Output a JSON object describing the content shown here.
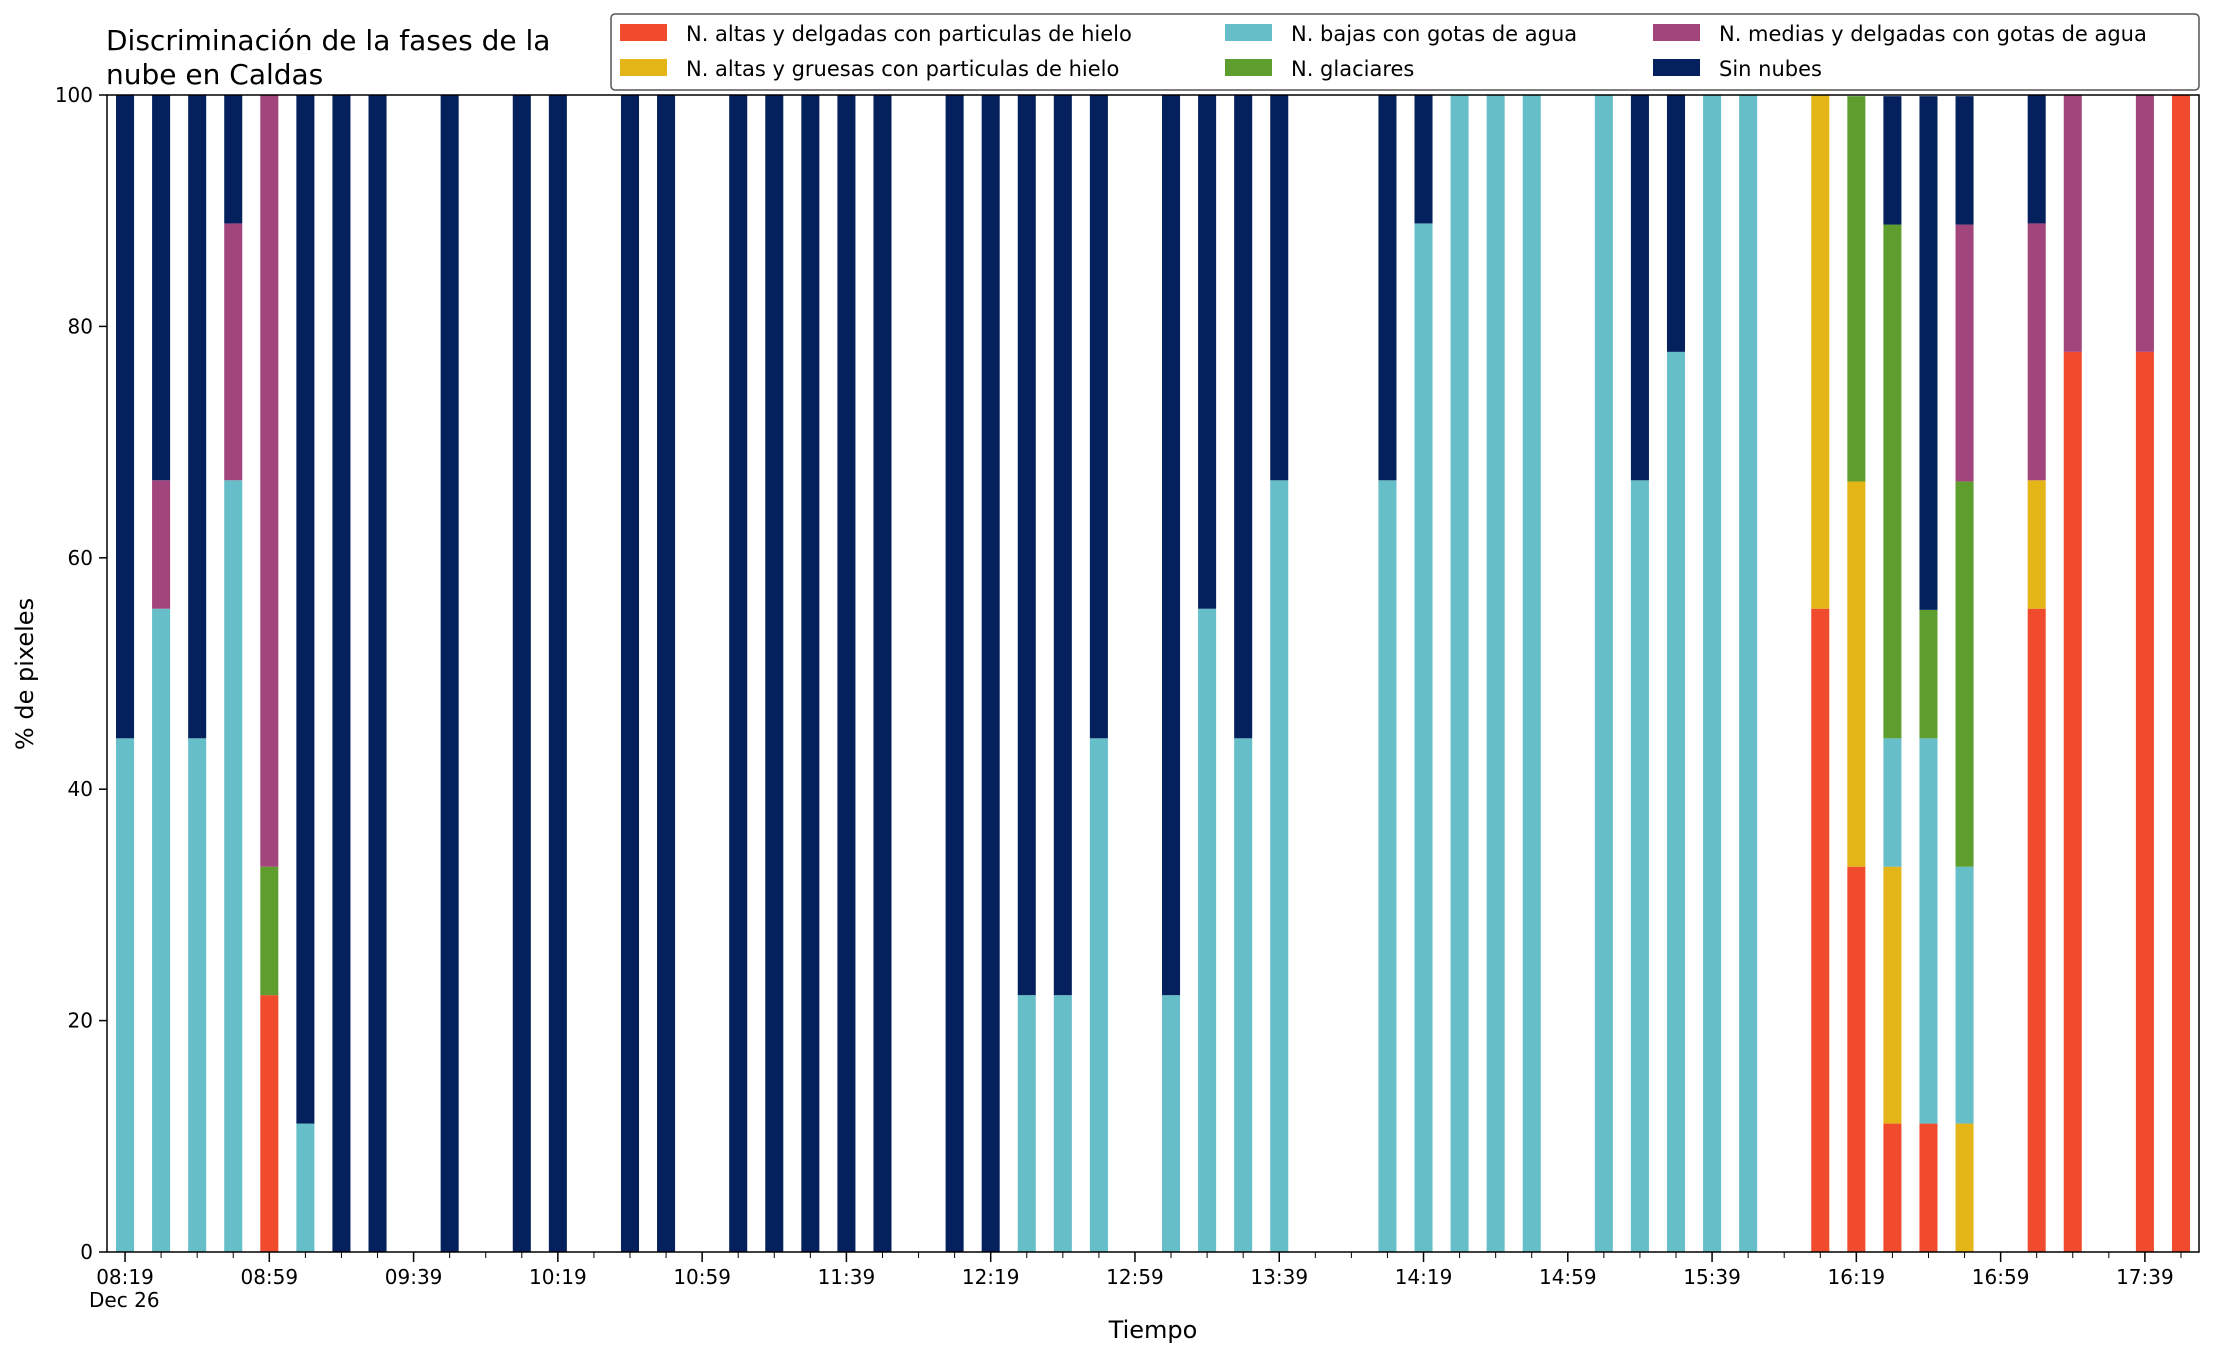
{
  "chart_data": {
    "type": "bar",
    "stacked": true,
    "title": "Discriminación de la fases de la nube en Caldas",
    "xlabel": "Tiempo",
    "ylabel": "% de pixeles",
    "ylim": [
      0,
      100
    ],
    "yticks": [
      0,
      20,
      40,
      60,
      80,
      100
    ],
    "xlim_slots": [
      -0.5,
      57.5
    ],
    "legend_position": "top-right",
    "grid": false,
    "x_date_label": "Dec 26",
    "xticks": [
      {
        "slot": 0,
        "label": "08:19"
      },
      {
        "slot": 4,
        "label": "08:59"
      },
      {
        "slot": 8,
        "label": "09:39"
      },
      {
        "slot": 12,
        "label": "10:19"
      },
      {
        "slot": 16,
        "label": "10:59"
      },
      {
        "slot": 20,
        "label": "11:39"
      },
      {
        "slot": 24,
        "label": "12:19"
      },
      {
        "slot": 28,
        "label": "12:59"
      },
      {
        "slot": 32,
        "label": "13:39"
      },
      {
        "slot": 36,
        "label": "14:19"
      },
      {
        "slot": 40,
        "label": "14:59"
      },
      {
        "slot": 44,
        "label": "15:39"
      },
      {
        "slot": 48,
        "label": "16:19"
      },
      {
        "slot": 52,
        "label": "16:59"
      },
      {
        "slot": 56,
        "label": "17:39"
      }
    ],
    "series": [
      {
        "name": "N. altas y delgadas con particulas de hielo",
        "color": "#f04b2c"
      },
      {
        "name": "N. altas y gruesas con particulas de hielo",
        "color": "#e3b516"
      },
      {
        "name": "N. bajas con gotas de agua",
        "color": "#66bec8"
      },
      {
        "name": "N. glaciares",
        "color": "#5d9e2e"
      },
      {
        "name": "N. medias y delgadas con gotas de agua",
        "color": "#a2457c"
      },
      {
        "name": "Sin nubes",
        "color": "#04215e"
      }
    ],
    "bars": [
      {
        "slot": 0,
        "time": "08:19",
        "values": [
          0,
          0,
          44.4,
          0,
          0,
          55.6
        ]
      },
      {
        "slot": 1,
        "time": "08:29",
        "values": [
          0,
          0,
          55.6,
          0,
          11.1,
          33.3
        ]
      },
      {
        "slot": 2,
        "time": "08:39",
        "values": [
          0,
          0,
          44.4,
          0,
          0,
          55.6
        ]
      },
      {
        "slot": 3,
        "time": "08:49",
        "values": [
          0,
          0,
          66.7,
          0,
          22.2,
          11.1
        ]
      },
      {
        "slot": 4,
        "time": "08:59",
        "values": [
          22.2,
          0,
          0,
          11.1,
          66.7,
          0
        ]
      },
      {
        "slot": 5,
        "time": "09:09",
        "values": [
          0,
          0,
          11.1,
          0,
          0,
          88.9
        ]
      },
      {
        "slot": 6,
        "time": "09:19",
        "values": [
          0,
          0,
          0,
          0,
          0,
          100
        ]
      },
      {
        "slot": 7,
        "time": "09:29",
        "values": [
          0,
          0,
          0,
          0,
          0,
          100
        ]
      },
      {
        "slot": 9,
        "time": "09:49",
        "values": [
          0,
          0,
          0,
          0,
          0,
          100
        ]
      },
      {
        "slot": 11,
        "time": "10:09",
        "values": [
          0,
          0,
          0,
          0,
          0,
          100
        ]
      },
      {
        "slot": 12,
        "time": "10:19",
        "values": [
          0,
          0,
          0,
          0,
          0,
          100
        ]
      },
      {
        "slot": 14,
        "time": "10:39",
        "values": [
          0,
          0,
          0,
          0,
          0,
          100
        ]
      },
      {
        "slot": 15,
        "time": "10:49",
        "values": [
          0,
          0,
          0,
          0,
          0,
          100
        ]
      },
      {
        "slot": 17,
        "time": "11:09",
        "values": [
          0,
          0,
          0,
          0,
          0,
          100
        ]
      },
      {
        "slot": 18,
        "time": "11:19",
        "values": [
          0,
          0,
          0,
          0,
          0,
          100
        ]
      },
      {
        "slot": 19,
        "time": "11:29",
        "values": [
          0,
          0,
          0,
          0,
          0,
          100
        ]
      },
      {
        "slot": 20,
        "time": "11:39",
        "values": [
          0,
          0,
          0,
          0,
          0,
          100
        ]
      },
      {
        "slot": 21,
        "time": "11:49",
        "values": [
          0,
          0,
          0,
          0,
          0,
          100
        ]
      },
      {
        "slot": 23,
        "time": "12:09",
        "values": [
          0,
          0,
          0,
          0,
          0,
          100
        ]
      },
      {
        "slot": 24,
        "time": "12:19",
        "values": [
          0,
          0,
          0,
          0,
          0,
          100
        ]
      },
      {
        "slot": 25,
        "time": "12:29",
        "values": [
          0,
          0,
          22.2,
          0,
          0,
          77.8
        ]
      },
      {
        "slot": 26,
        "time": "12:39",
        "values": [
          0,
          0,
          22.2,
          0,
          0,
          77.8
        ]
      },
      {
        "slot": 27,
        "time": "12:49",
        "values": [
          0,
          0,
          44.4,
          0,
          0,
          55.6
        ]
      },
      {
        "slot": 29,
        "time": "13:09",
        "values": [
          0,
          0,
          22.2,
          0,
          0,
          77.8
        ]
      },
      {
        "slot": 30,
        "time": "13:19",
        "values": [
          0,
          0,
          55.6,
          0,
          0,
          44.4
        ]
      },
      {
        "slot": 31,
        "time": "13:29",
        "values": [
          0,
          0,
          44.4,
          0,
          0,
          55.6
        ]
      },
      {
        "slot": 32,
        "time": "13:39",
        "values": [
          0,
          0,
          66.7,
          0,
          0,
          33.3
        ]
      },
      {
        "slot": 35,
        "time": "14:09",
        "values": [
          0,
          0,
          66.7,
          0,
          0,
          33.3
        ]
      },
      {
        "slot": 36,
        "time": "14:19",
        "values": [
          0,
          0,
          88.9,
          0,
          0,
          11.1
        ]
      },
      {
        "slot": 37,
        "time": "14:29",
        "values": [
          0,
          0,
          100,
          0,
          0,
          0
        ]
      },
      {
        "slot": 38,
        "time": "14:39",
        "values": [
          0,
          0,
          100,
          0,
          0,
          0
        ]
      },
      {
        "slot": 39,
        "time": "14:49",
        "values": [
          0,
          0,
          100,
          0,
          0,
          0
        ]
      },
      {
        "slot": 41,
        "time": "15:09",
        "values": [
          0,
          0,
          100,
          0,
          0,
          0
        ]
      },
      {
        "slot": 42,
        "time": "15:19",
        "values": [
          0,
          0,
          66.7,
          0,
          0,
          33.3
        ]
      },
      {
        "slot": 43,
        "time": "15:29",
        "values": [
          0,
          0,
          77.8,
          0,
          0,
          22.2
        ]
      },
      {
        "slot": 44,
        "time": "15:39",
        "values": [
          0,
          0,
          100,
          0,
          0,
          0
        ]
      },
      {
        "slot": 45,
        "time": "15:49",
        "values": [
          0,
          0,
          100,
          0,
          0,
          0
        ]
      },
      {
        "slot": 47,
        "time": "16:09",
        "values": [
          55.6,
          44.4,
          0,
          0,
          0,
          0
        ]
      },
      {
        "slot": 48,
        "time": "16:19",
        "values": [
          33.3,
          33.3,
          0,
          33.3,
          0,
          0
        ]
      },
      {
        "slot": 49,
        "time": "16:29",
        "values": [
          11.1,
          22.2,
          11.1,
          44.4,
          0,
          11.1
        ]
      },
      {
        "slot": 50,
        "time": "16:39",
        "values": [
          11.1,
          0,
          33.3,
          11.1,
          0,
          44.4
        ]
      },
      {
        "slot": 51,
        "time": "16:49",
        "values": [
          0,
          11.1,
          22.2,
          33.3,
          22.2,
          11.1
        ]
      },
      {
        "slot": 53,
        "time": "17:09",
        "values": [
          55.6,
          11.1,
          0,
          0,
          22.2,
          11.1
        ]
      },
      {
        "slot": 54,
        "time": "17:19",
        "values": [
          77.8,
          0,
          0,
          0,
          22.2,
          0
        ]
      },
      {
        "slot": 56,
        "time": "17:39",
        "values": [
          77.8,
          0,
          0,
          0,
          22.2,
          0
        ]
      },
      {
        "slot": 57,
        "time": "17:49",
        "values": [
          100,
          0,
          0,
          0,
          0,
          0
        ]
      }
    ]
  }
}
